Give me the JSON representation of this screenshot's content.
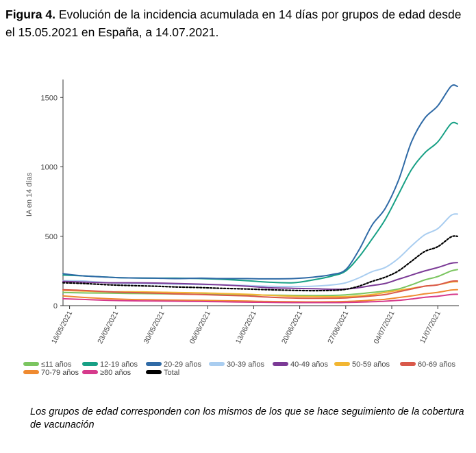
{
  "figure": {
    "label": "Figura 4.",
    "title": "Evolución de la incidencia acumulada en 14 días por grupos de edad desde el 15.05.2021 en España, a 14.07.2021."
  },
  "note": "Los grupos de edad corresponden con los mismos de los que se hace seguimiento de la cobertura de vacunación",
  "chart_data": {
    "type": "line",
    "title": "",
    "xlabel": "",
    "ylabel": "IA en 14 días",
    "ylim": [
      0,
      1600
    ],
    "yticks": [
      0,
      500,
      1000,
      1500
    ],
    "grid": false,
    "legend_position": "bottom",
    "x_start": "15/05/2021",
    "x_end": "14/07/2021",
    "x_ticks": [
      "16/05/2021",
      "23/05/2021",
      "30/05/2021",
      "06/06/2021",
      "13/06/2021",
      "20/06/2021",
      "27/06/2021",
      "04/07/2021",
      "11/07/2021"
    ],
    "x_tick_day_index": [
      1,
      8,
      15,
      22,
      29,
      36,
      43,
      50,
      57
    ],
    "sample_day_index": [
      0,
      3,
      7,
      10,
      14,
      17,
      21,
      24,
      28,
      31,
      35,
      38,
      41,
      43,
      45,
      47,
      49,
      51,
      53,
      55,
      57,
      59,
      60
    ],
    "series": [
      {
        "name": "≤11 años",
        "color": "#7bc560",
        "dashed": false,
        "values": [
          95,
          92,
          90,
          88,
          86,
          84,
          82,
          80,
          78,
          76,
          74,
          73,
          74,
          78,
          85,
          95,
          105,
          120,
          150,
          185,
          210,
          250,
          260
        ]
      },
      {
        "name": "12-19 años",
        "color": "#17a085",
        "dashed": false,
        "values": [
          220,
          215,
          205,
          200,
          198,
          198,
          195,
          190,
          180,
          170,
          165,
          185,
          215,
          250,
          350,
          480,
          620,
          800,
          980,
          1100,
          1180,
          1310,
          1310
        ]
      },
      {
        "name": "20-29 años",
        "color": "#2f6aa6",
        "dashed": false,
        "values": [
          230,
          215,
          205,
          200,
          198,
          195,
          198,
          195,
          195,
          193,
          195,
          205,
          225,
          260,
          400,
          580,
          700,
          900,
          1180,
          1350,
          1440,
          1580,
          1580
        ]
      },
      {
        "name": "30-39 años",
        "color": "#a9cdf0",
        "dashed": false,
        "values": [
          180,
          178,
          165,
          160,
          158,
          155,
          152,
          150,
          145,
          140,
          138,
          140,
          150,
          165,
          200,
          245,
          275,
          340,
          430,
          510,
          555,
          650,
          660
        ]
      },
      {
        "name": "40-49 años",
        "color": "#7b3a96",
        "dashed": false,
        "values": [
          175,
          170,
          165,
          165,
          163,
          160,
          155,
          150,
          140,
          130,
          125,
          122,
          118,
          120,
          130,
          145,
          160,
          190,
          220,
          250,
          275,
          305,
          310
        ]
      },
      {
        "name": "50-59 años",
        "color": "#f2b632",
        "dashed": false,
        "values": [
          110,
          105,
          100,
          100,
          98,
          95,
          92,
          88,
          82,
          75,
          68,
          65,
          64,
          65,
          70,
          80,
          95,
          110,
          125,
          140,
          150,
          170,
          172
        ]
      },
      {
        "name": "60-69 años",
        "color": "#d9584a",
        "dashed": false,
        "values": [
          115,
          110,
          100,
          95,
          90,
          85,
          80,
          75,
          70,
          62,
          55,
          53,
          54,
          56,
          62,
          70,
          80,
          100,
          120,
          140,
          150,
          175,
          178
        ]
      },
      {
        "name": "70-79 años",
        "color": "#ef8a30",
        "dashed": false,
        "values": [
          70,
          60,
          50,
          45,
          42,
          40,
          38,
          36,
          33,
          30,
          28,
          27,
          28,
          30,
          34,
          40,
          46,
          58,
          70,
          85,
          96,
          112,
          115
        ]
      },
      {
        "name": "≥80 años",
        "color": "#d63a8c",
        "dashed": false,
        "values": [
          50,
          45,
          38,
          35,
          33,
          32,
          30,
          28,
          25,
          24,
          22,
          22,
          22,
          23,
          25,
          28,
          32,
          38,
          48,
          60,
          68,
          80,
          82
        ]
      },
      {
        "name": "Total",
        "color": "#000000",
        "dashed": true,
        "values": [
          165,
          160,
          150,
          145,
          140,
          135,
          130,
          125,
          120,
          115,
          110,
          108,
          110,
          118,
          140,
          175,
          205,
          250,
          320,
          390,
          425,
          495,
          500
        ]
      }
    ]
  }
}
